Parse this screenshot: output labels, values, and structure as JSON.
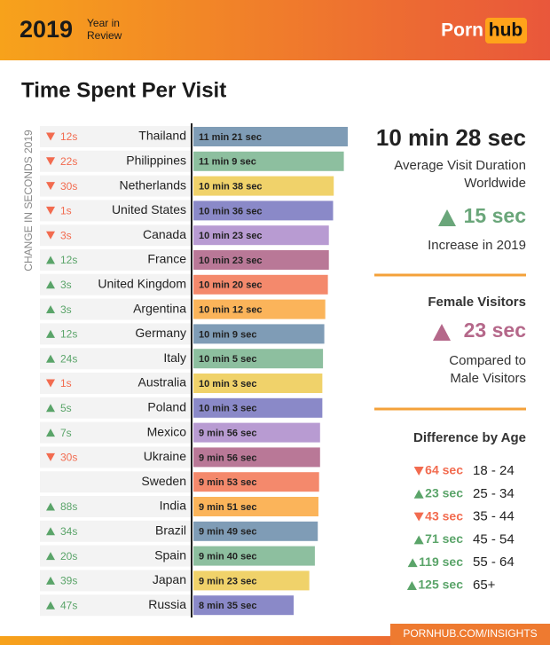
{
  "header": {
    "year": "2019",
    "tagline_1": "Year in",
    "tagline_2": "Review",
    "logo_left": "Porn",
    "logo_right": "hub"
  },
  "footer": {
    "link": "PORNHUB.COM/INSIGHTS"
  },
  "chart_data": {
    "type": "bar",
    "orientation": "horizontal",
    "title": "Time Spent Per Visit",
    "change_axis_label": "CHANGE IN SECONDS 2019",
    "categories": [
      "Thailand",
      "Philippines",
      "Netherlands",
      "United States",
      "Canada",
      "France",
      "United Kingdom",
      "Argentina",
      "Germany",
      "Italy",
      "Australia",
      "Poland",
      "Mexico",
      "Ukraine",
      "Sweden",
      "India",
      "Brazil",
      "Spain",
      "Japan",
      "Russia"
    ],
    "values": [
      681,
      669,
      638,
      636,
      623,
      623,
      620,
      612,
      609,
      605,
      603,
      603,
      596,
      596,
      593,
      591,
      589,
      580,
      563,
      515
    ],
    "value_labels": [
      "11 min 21 sec",
      "11 min 9 sec",
      "10 min 38 sec",
      "10 min 36 sec",
      "10 min 23 sec",
      "10 min 23 sec",
      "10 min 20 sec",
      "10 min 12 sec",
      "10 min 9 sec",
      "10 min 5 sec",
      "10 min 3 sec",
      "10 min 3 sec",
      "9 min 56 sec",
      "9 min 56 sec",
      "9 min 53 sec",
      "9 min 51 sec",
      "9 min 49 sec",
      "9 min 40 sec",
      "9 min 23 sec",
      "8 min 35 sec"
    ],
    "changes": [
      -12,
      -22,
      -30,
      -1,
      -3,
      12,
      3,
      3,
      12,
      24,
      -1,
      5,
      7,
      -30,
      null,
      88,
      34,
      20,
      39,
      47
    ],
    "change_labels": [
      "12s",
      "22s",
      "30s",
      "1s",
      "3s",
      "12s",
      "3s",
      "3s",
      "12s",
      "24s",
      "1s",
      "5s",
      "7s",
      "30s",
      null,
      "88s",
      "34s",
      "20s",
      "39s",
      "47s"
    ],
    "colors": [
      "#7f9cb6",
      "#8dbf9f",
      "#f0d26a",
      "#8a89c8",
      "#b89bd2",
      "#b97897",
      "#f4896c",
      "#fbb45a"
    ],
    "up_color": "#5aa469",
    "down_color": "#f26b4f",
    "xlim": [
      207,
      681
    ]
  },
  "sidebar": {
    "overall": "10 min 28 sec",
    "overall_caption_1": "Average Visit Duration",
    "overall_caption_2": "Worldwide",
    "increase": "15 sec",
    "increase_caption": "Increase in 2019",
    "female_title": "Female Visitors",
    "female_change": "23 sec",
    "female_caption_1": "Compared to",
    "female_caption_2": "Male Visitors",
    "age_title": "Difference by Age",
    "ages": [
      {
        "change": "64 sec",
        "direction": "down",
        "range": "18 - 24"
      },
      {
        "change": "23 sec",
        "direction": "up",
        "range": "25 - 34"
      },
      {
        "change": "43 sec",
        "direction": "down",
        "range": "35 - 44"
      },
      {
        "change": "71 sec",
        "direction": "up",
        "range": "45 - 54"
      },
      {
        "change": "119 sec",
        "direction": "up",
        "range": "55 - 64"
      },
      {
        "change": "125 sec",
        "direction": "up",
        "range": "65+"
      }
    ]
  }
}
